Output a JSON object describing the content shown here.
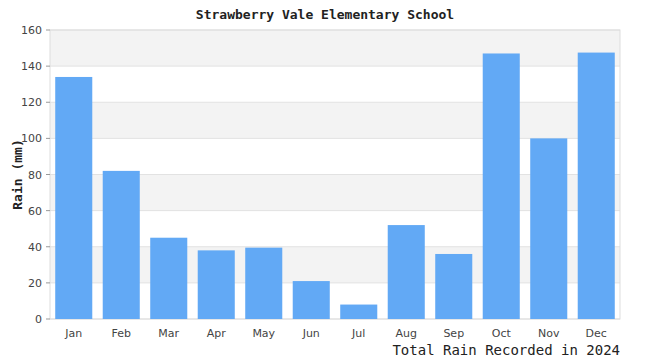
{
  "chart_data": {
    "type": "bar",
    "title": "Strawberry Vale Elementary School",
    "xlabel": "Total Rain Recorded in 2024",
    "ylabel": "Rain (mm)",
    "categories": [
      "Jan",
      "Feb",
      "Mar",
      "Apr",
      "May",
      "Jun",
      "Jul",
      "Aug",
      "Sep",
      "Oct",
      "Nov",
      "Dec"
    ],
    "values": [
      134,
      82,
      45,
      38,
      39.5,
      21,
      8,
      52,
      36,
      147,
      100,
      147.5
    ],
    "color": "#62a9f5",
    "ylim": [
      0,
      160
    ],
    "yticks": [
      0,
      20,
      40,
      60,
      80,
      100,
      120,
      140,
      160
    ],
    "grid": true
  }
}
